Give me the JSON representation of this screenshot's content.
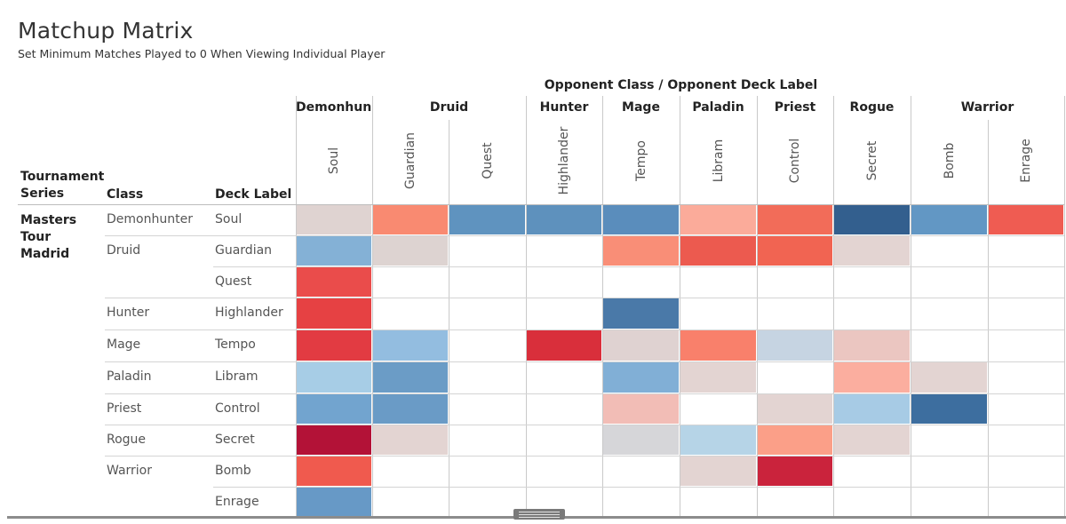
{
  "title": "Matchup Matrix",
  "subtitle": "Set Minimum Matches Played to 0 When Viewing Individual Player",
  "column_super_header": "Opponent Class  /  Opponent Deck Label",
  "row_headers": {
    "series": "Tournament Series",
    "class": "Class",
    "deck": "Deck Label"
  },
  "series_name": "Masters Tour Madrid",
  "colors": {
    "grid": "#c9c9c9",
    "text": "#333333"
  },
  "chart_data": {
    "type": "heatmap",
    "title": "Matchup Matrix",
    "row_classes": [
      "Demonhunter",
      "Druid",
      "Hunter",
      "Mage",
      "Paladin",
      "Priest",
      "Rogue",
      "Warrior"
    ],
    "rows": [
      {
        "class": "Demonhunter",
        "deck": "Soul"
      },
      {
        "class": "Druid",
        "deck": "Guardian"
      },
      {
        "class": "",
        "deck": "Quest"
      },
      {
        "class": "Hunter",
        "deck": "Highlander"
      },
      {
        "class": "Mage",
        "deck": "Tempo"
      },
      {
        "class": "Paladin",
        "deck": "Libram"
      },
      {
        "class": "Priest",
        "deck": "Control"
      },
      {
        "class": "Rogue",
        "deck": "Secret"
      },
      {
        "class": "Warrior",
        "deck": "Bomb"
      },
      {
        "class": "",
        "deck": "Enrage"
      }
    ],
    "column_classes": [
      {
        "name": "Demonhun..",
        "span": 1
      },
      {
        "name": "Druid",
        "span": 2
      },
      {
        "name": "Hunter",
        "span": 1
      },
      {
        "name": "Mage",
        "span": 1
      },
      {
        "name": "Paladin",
        "span": 1
      },
      {
        "name": "Priest",
        "span": 1
      },
      {
        "name": "Rogue",
        "span": 1
      },
      {
        "name": "Warrior",
        "span": 2
      }
    ],
    "column_decks": [
      "Soul",
      "Guardian",
      "Quest",
      "Highlander",
      "Tempo",
      "Libram",
      "Control",
      "Secret",
      "Bomb",
      "Enrage"
    ],
    "cell_colors": [
      [
        "#dfd3d1",
        "#f98a71",
        "#5f93bf",
        "#5e91bd",
        "#5a8dbc",
        "#fbab9a",
        "#f26c59",
        "#335f8e",
        "#6297c4",
        "#ef5c52"
      ],
      [
        "#84b1d6",
        "#ddd3d1",
        null,
        null,
        "#f98e77",
        "#ec5a4f",
        "#f16452",
        "#e3d4d2",
        null,
        null
      ],
      [
        "#ea4c4b",
        null,
        null,
        null,
        null,
        null,
        null,
        null,
        null,
        null
      ],
      [
        "#e64143",
        null,
        null,
        null,
        "#4a79a8",
        null,
        null,
        null,
        null,
        null
      ],
      [
        "#e23b42",
        "#93bde0",
        null,
        "#d92f3b",
        "#dfd2d1",
        "#f9806b",
        "#c6d4e2",
        "#ebc6c1",
        null,
        null
      ],
      [
        "#a7cde6",
        "#6b9cc6",
        null,
        null,
        "#81afd6",
        "#e3d4d2",
        null,
        "#fbae9f",
        "#e3d4d2",
        null
      ],
      [
        "#72a4cf",
        "#6a9bc6",
        null,
        null,
        "#f2bdb6",
        null,
        "#e3d4d2",
        "#a7cbe5",
        "#3d6e9f",
        null
      ],
      [
        "#b31237",
        "#e3d4d2",
        null,
        null,
        "#d6d6d9",
        "#b6d4e7",
        "#fb9f88",
        "#e3d4d2",
        null,
        null
      ],
      [
        "#f05a4e",
        null,
        null,
        null,
        null,
        "#e3d4d2",
        "#ca233c",
        null,
        null,
        null
      ],
      [
        "#6799c6",
        null,
        null,
        null,
        null,
        null,
        null,
        null,
        null,
        null
      ]
    ]
  }
}
